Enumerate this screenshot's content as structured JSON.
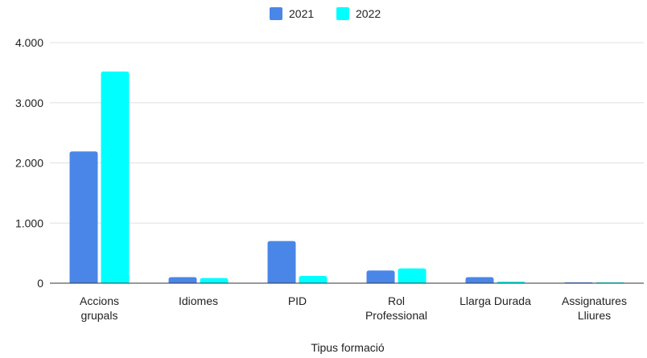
{
  "chart_data": {
    "type": "bar",
    "title": "",
    "xlabel": "Tipus formació",
    "ylabel": "",
    "categories": [
      [
        "Accions",
        "grupals"
      ],
      [
        "Idiomes"
      ],
      [
        "PID"
      ],
      [
        "Rol",
        "Professional"
      ],
      [
        "Llarga Durada"
      ],
      [
        "Assignatures",
        "Lliures"
      ]
    ],
    "series": [
      {
        "name": "2021",
        "color": "#4a86e8",
        "values": [
          2190,
          100,
          700,
          210,
          100,
          10
        ]
      },
      {
        "name": "2022",
        "color": "#00ffff",
        "values": [
          3520,
          85,
          120,
          245,
          25,
          10
        ]
      }
    ],
    "ylim": [
      0,
      4000
    ],
    "yticks": [
      {
        "value": 0,
        "label": "0"
      },
      {
        "value": 1000,
        "label": "1.000"
      },
      {
        "value": 2000,
        "label": "2.000"
      },
      {
        "value": 3000,
        "label": "3.000"
      },
      {
        "value": 4000,
        "label": "4.000"
      }
    ],
    "grid": true,
    "legend": "top-center",
    "colors": {
      "grid": "#e0e0e0",
      "axis": "#333333"
    }
  }
}
